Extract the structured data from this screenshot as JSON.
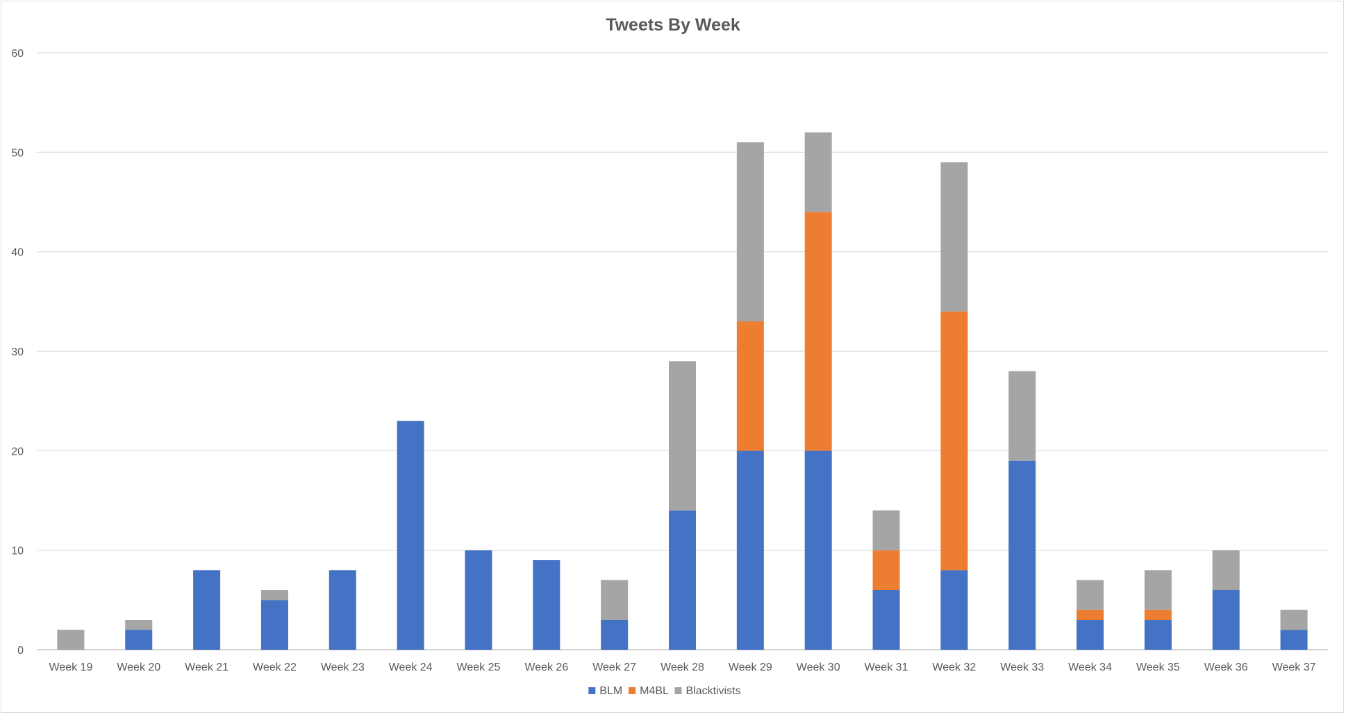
{
  "chart_data": {
    "type": "bar",
    "stacked": true,
    "title": "Tweets By Week",
    "xlabel": "",
    "ylabel": "",
    "ylim": [
      0,
      60
    ],
    "yticks": [
      0,
      10,
      20,
      30,
      40,
      50,
      60
    ],
    "grid": true,
    "legend_position": "bottom",
    "categories": [
      "Week 19",
      "Week 20",
      "Week 21",
      "Week 22",
      "Week 23",
      "Week 24",
      "Week 25",
      "Week 26",
      "Week 27",
      "Week 28",
      "Week 29",
      "Week 30",
      "Week 31",
      "Week 32",
      "Week 33",
      "Week 34",
      "Week 35",
      "Week 36",
      "Week 37"
    ],
    "series": [
      {
        "name": "BLM",
        "color": "#4472c4",
        "values": [
          0,
          2,
          8,
          5,
          8,
          23,
          10,
          9,
          3,
          14,
          20,
          20,
          6,
          8,
          19,
          3,
          3,
          6,
          2
        ]
      },
      {
        "name": "M4BL",
        "color": "#ed7d31",
        "values": [
          0,
          0,
          0,
          0,
          0,
          0,
          0,
          0,
          0,
          0,
          13,
          24,
          4,
          26,
          0,
          1,
          1,
          0,
          0
        ]
      },
      {
        "name": "Blacktivists",
        "color": "#a5a5a5",
        "values": [
          2,
          1,
          0,
          1,
          0,
          0,
          0,
          0,
          4,
          15,
          18,
          8,
          4,
          15,
          9,
          3,
          4,
          4,
          2
        ]
      }
    ]
  }
}
